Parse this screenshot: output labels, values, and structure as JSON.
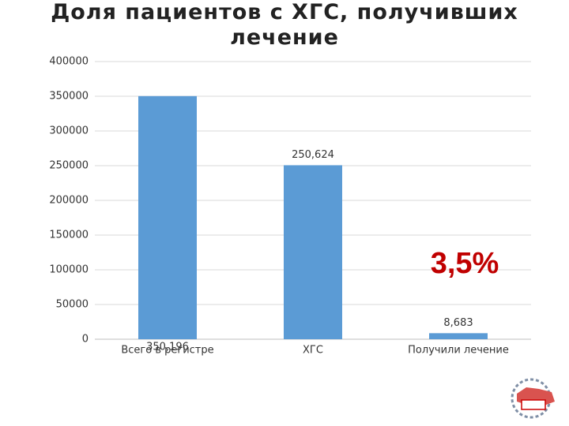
{
  "chart_data": {
    "type": "bar",
    "title": "Доля пациентов с ХГС, получивших лечение",
    "categories": [
      "Всего в регистре",
      "ХГС",
      "Получили лечение"
    ],
    "values": [
      350196,
      250624,
      8683
    ],
    "value_labels": [
      "350,196",
      "250,624",
      "8,683"
    ],
    "color": "#5b9bd5",
    "ylim": [
      0,
      400000
    ],
    "yticks": [
      0,
      50000,
      100000,
      150000,
      200000,
      250000,
      300000,
      350000,
      400000
    ],
    "grid": true,
    "annotation": "3,5%"
  }
}
